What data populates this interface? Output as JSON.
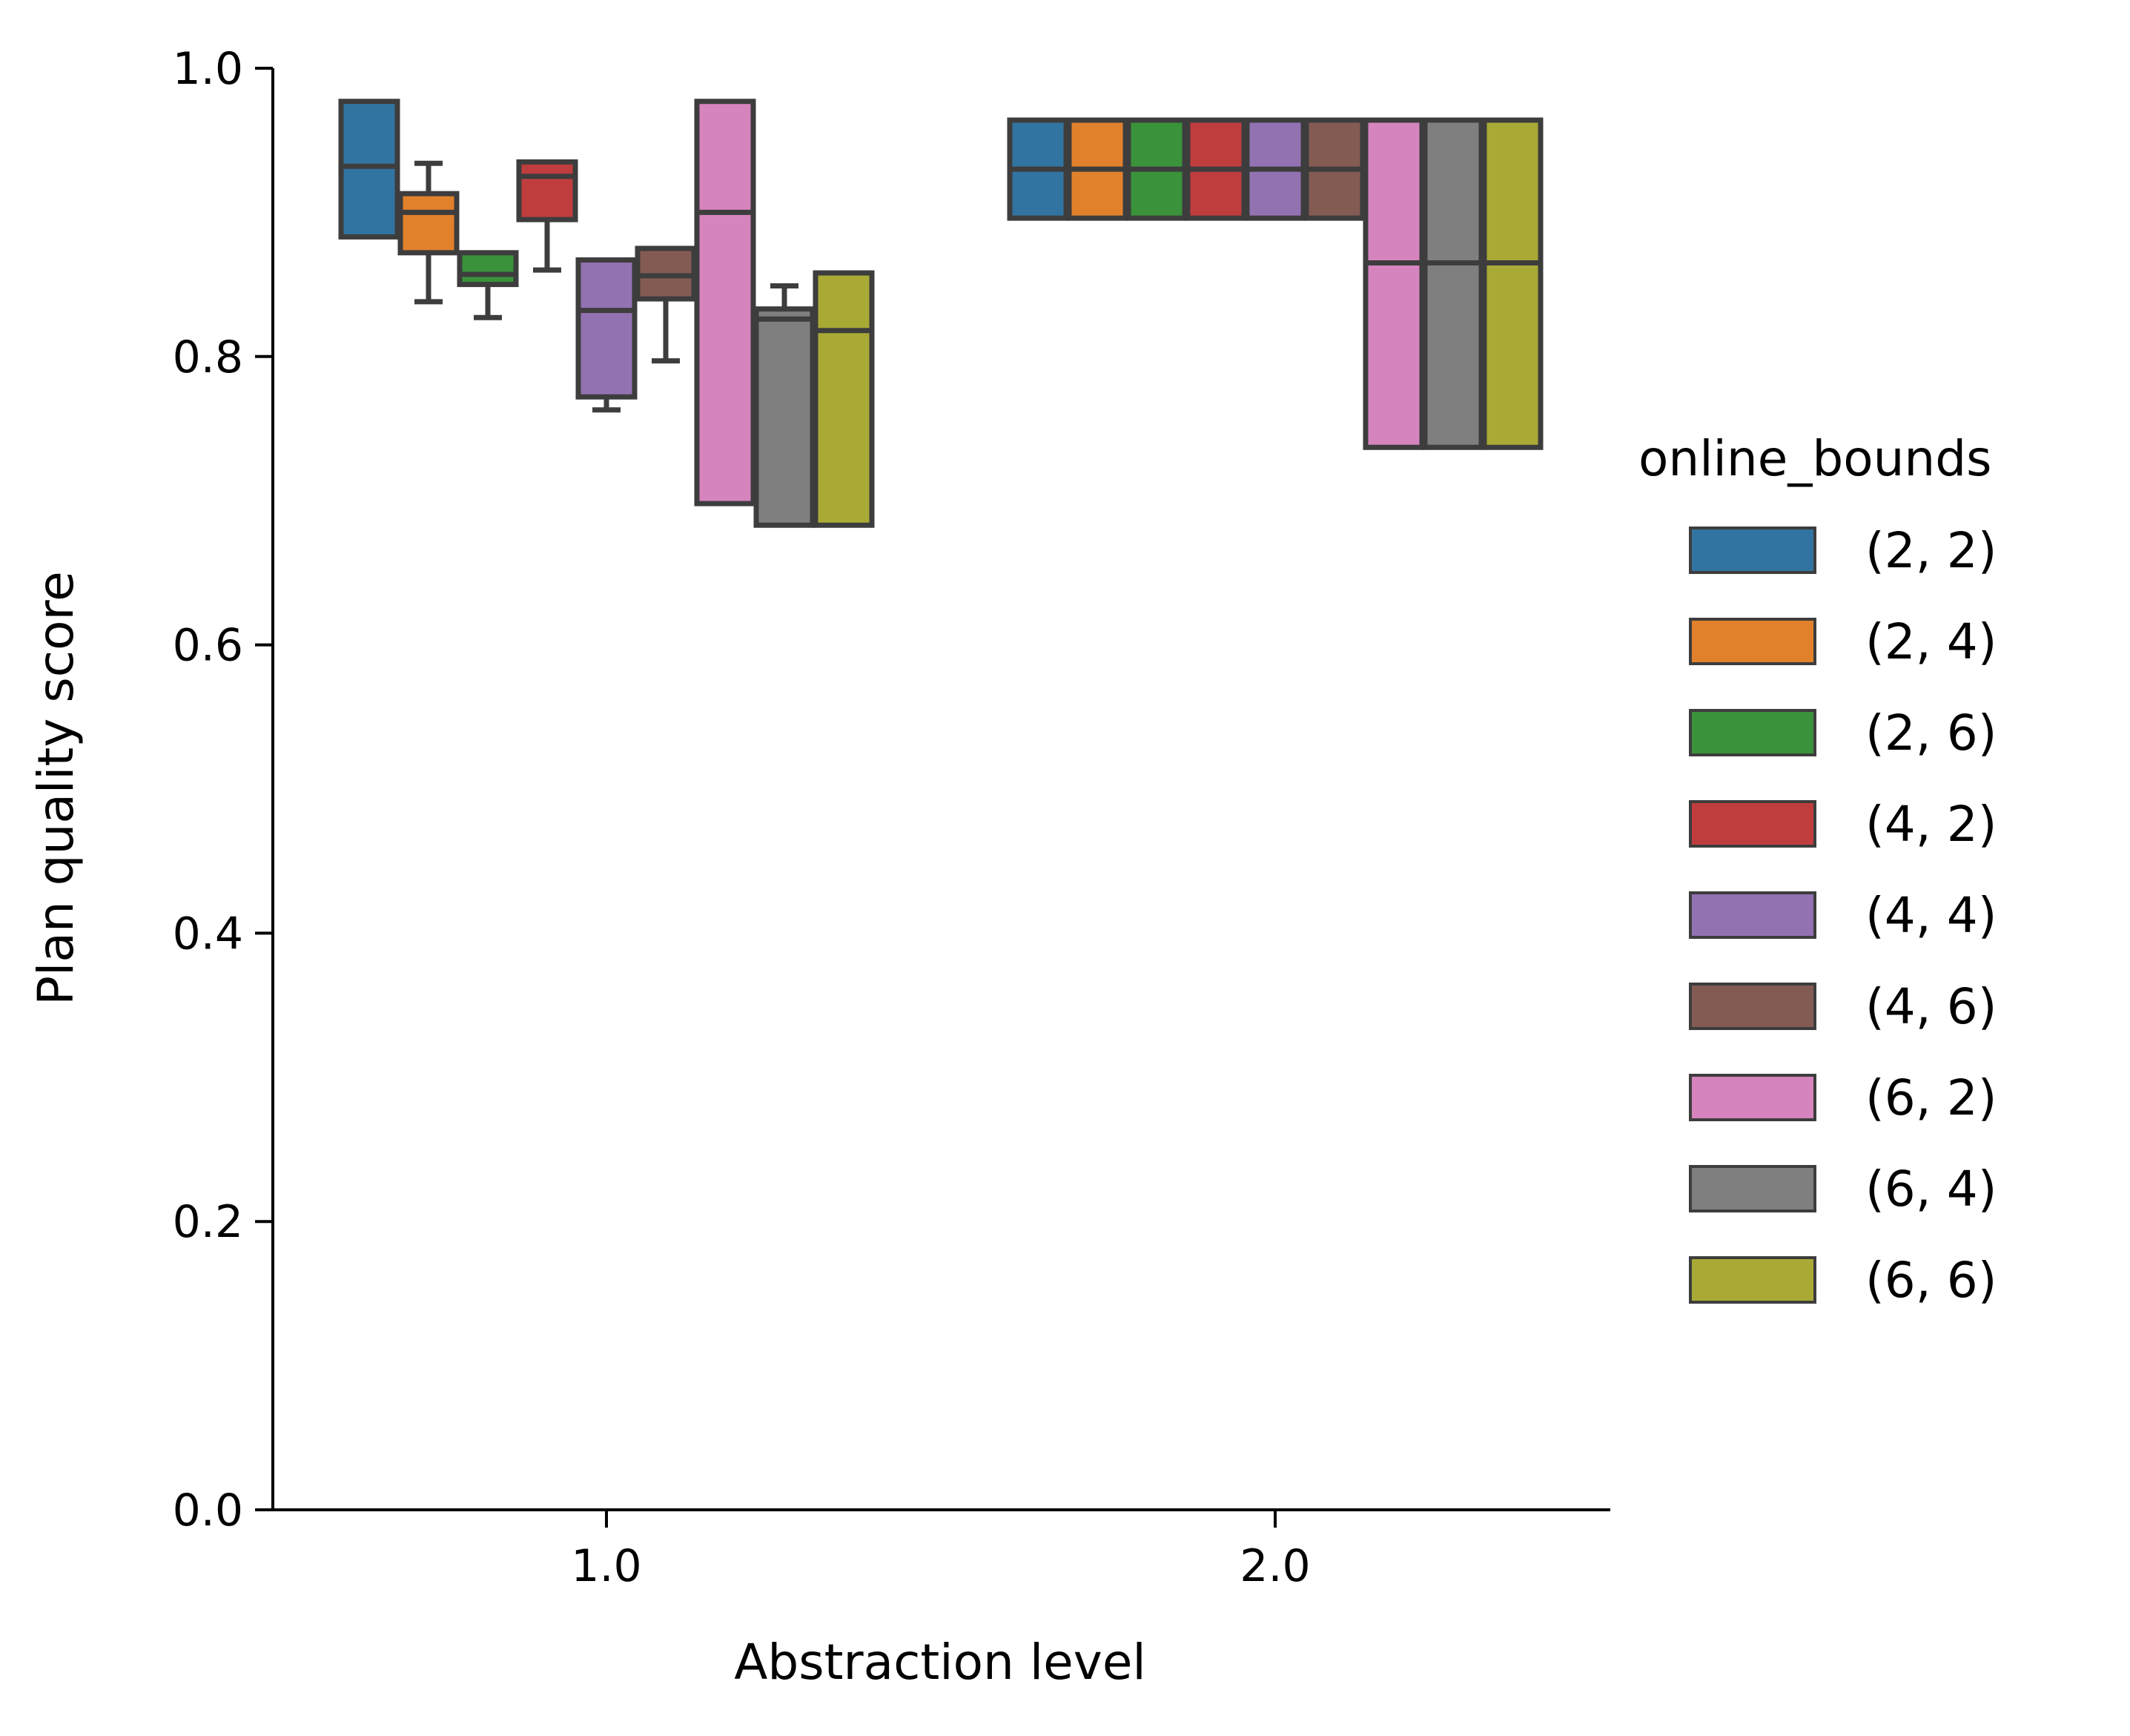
{
  "chart_data": {
    "type": "box",
    "xlabel": "Abstraction level",
    "ylabel": "Plan quality score",
    "ylim": [
      0.0,
      1.0
    ],
    "yticks": [
      "0.0",
      "0.2",
      "0.4",
      "0.6",
      "0.8",
      "1.0"
    ],
    "categories": [
      "1.0",
      "2.0"
    ],
    "grid": false,
    "legend": {
      "title": "online_bounds",
      "placement": "right"
    },
    "series": [
      {
        "name": "(2, 2)",
        "color": "#3274a1",
        "boxes": [
          {
            "category": "1.0",
            "q1": 0.883,
            "median": 0.932,
            "q3": 0.977,
            "whisker_low": null,
            "whisker_high": null
          },
          {
            "category": "2.0",
            "q1": 0.896,
            "median": 0.93,
            "q3": 0.964,
            "whisker_low": null,
            "whisker_high": null
          }
        ]
      },
      {
        "name": "(2, 4)",
        "color": "#e1812c",
        "boxes": [
          {
            "category": "1.0",
            "q1": 0.872,
            "median": 0.9,
            "q3": 0.913,
            "whisker_low": 0.838,
            "whisker_high": 0.934
          },
          {
            "category": "2.0",
            "q1": 0.896,
            "median": 0.93,
            "q3": 0.964,
            "whisker_low": null,
            "whisker_high": null
          }
        ]
      },
      {
        "name": "(2, 6)",
        "color": "#3a923a",
        "boxes": [
          {
            "category": "1.0",
            "q1": 0.85,
            "median": 0.857,
            "q3": 0.872,
            "whisker_low": 0.827,
            "whisker_high": null
          },
          {
            "category": "2.0",
            "q1": 0.896,
            "median": 0.93,
            "q3": 0.964,
            "whisker_low": null,
            "whisker_high": null
          }
        ]
      },
      {
        "name": "(4, 2)",
        "color": "#c03d3e",
        "boxes": [
          {
            "category": "1.0",
            "q1": 0.895,
            "median": 0.925,
            "q3": 0.935,
            "whisker_low": 0.86,
            "whisker_high": null
          },
          {
            "category": "2.0",
            "q1": 0.896,
            "median": 0.93,
            "q3": 0.964,
            "whisker_low": null,
            "whisker_high": null
          }
        ]
      },
      {
        "name": "(4, 4)",
        "color": "#9372b2",
        "boxes": [
          {
            "category": "1.0",
            "q1": 0.772,
            "median": 0.832,
            "q3": 0.867,
            "whisker_low": 0.763,
            "whisker_high": null
          },
          {
            "category": "2.0",
            "q1": 0.896,
            "median": 0.93,
            "q3": 0.964,
            "whisker_low": null,
            "whisker_high": null
          }
        ]
      },
      {
        "name": "(4, 6)",
        "color": "#845b53",
        "boxes": [
          {
            "category": "1.0",
            "q1": 0.84,
            "median": 0.856,
            "q3": 0.875,
            "whisker_low": 0.797,
            "whisker_high": null
          },
          {
            "category": "2.0",
            "q1": 0.896,
            "median": 0.93,
            "q3": 0.964,
            "whisker_low": null,
            "whisker_high": null
          }
        ]
      },
      {
        "name": "(6, 2)",
        "color": "#d684bd",
        "boxes": [
          {
            "category": "1.0",
            "q1": 0.698,
            "median": 0.9,
            "q3": 0.977,
            "whisker_low": null,
            "whisker_high": null
          },
          {
            "category": "2.0",
            "q1": 0.737,
            "median": 0.865,
            "q3": 0.964,
            "whisker_low": null,
            "whisker_high": null
          }
        ]
      },
      {
        "name": "(6, 4)",
        "color": "#7f7f7f",
        "boxes": [
          {
            "category": "1.0",
            "q1": 0.683,
            "median": 0.826,
            "q3": 0.833,
            "whisker_low": null,
            "whisker_high": 0.849
          },
          {
            "category": "2.0",
            "q1": 0.737,
            "median": 0.865,
            "q3": 0.964,
            "whisker_low": null,
            "whisker_high": null
          }
        ]
      },
      {
        "name": "(6, 6)",
        "color": "#a9aa35",
        "boxes": [
          {
            "category": "1.0",
            "q1": 0.683,
            "median": 0.818,
            "q3": 0.858,
            "whisker_low": null,
            "whisker_high": null
          },
          {
            "category": "2.0",
            "q1": 0.737,
            "median": 0.865,
            "q3": 0.964,
            "whisker_low": null,
            "whisker_high": null
          }
        ]
      }
    ]
  }
}
